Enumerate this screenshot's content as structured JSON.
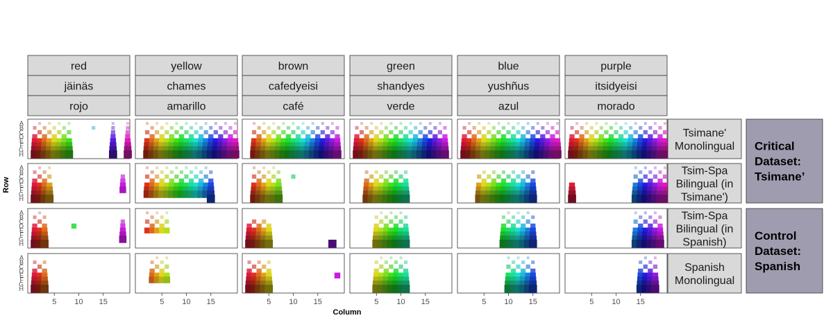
{
  "chart_data": {
    "type": "heatmap",
    "title": "",
    "xlabel": "Column",
    "ylabel": "Row",
    "x_ticks": [
      5,
      10,
      15
    ],
    "x_range": [
      0,
      20
    ],
    "y_ticks": [
      "A",
      "B",
      "C",
      "D",
      "E",
      "F",
      "G",
      "H"
    ],
    "colors": [
      {
        "english": "red",
        "tsimane": "jäinäs",
        "spanish": "rojo",
        "hex": "#c0392b"
      },
      {
        "english": "yellow",
        "tsimane": "chames",
        "spanish": "amarillo",
        "hex": "#d4b82a"
      },
      {
        "english": "brown",
        "tsimane": "cafedyeisi",
        "spanish": "café",
        "hex": "#7a4a1a"
      },
      {
        "english": "green",
        "tsimane": "shandyes",
        "spanish": "verde",
        "hex": "#2e8b3a"
      },
      {
        "english": "blue",
        "tsimane": "yushñus",
        "spanish": "azul",
        "hex": "#2a6fb0"
      },
      {
        "english": "purple",
        "tsimane": "itsidyeisi",
        "spanish": "morado",
        "hex": "#7a2a7a"
      }
    ],
    "conditions": [
      "Tsimane' Monolingual",
      "Tsim-Spa Bilingual (in Tsimane')",
      "Tsim-Spa Bilingual (in Spanish)",
      "Spanish Monolingual"
    ],
    "condition_lines": [
      [
        "Tsimane'",
        "Monolingual"
      ],
      [
        "Tsim-Spa",
        "Bilingual (in",
        "Tsimane')"
      ],
      [
        "Tsim-Spa",
        "Bilingual (in",
        "Spanish)"
      ],
      [
        "Spanish",
        "Monolingual"
      ]
    ],
    "groups": [
      {
        "lines": [
          "Critical",
          "Dataset:",
          "Tsimane’"
        ],
        "conditions": [
          0,
          1
        ]
      },
      {
        "lines": [
          "Control",
          "Dataset:",
          "Spanish"
        ],
        "conditions": [
          2,
          3
        ]
      }
    ],
    "panels": [
      [
        {
          "col": [
            1,
            8
          ],
          "row": [
            0,
            7
          ],
          "extra": [
            [
              17,
              0,
              7
            ],
            [
              20,
              0,
              7
            ],
            [
              13,
              1,
              1
            ]
          ]
        },
        {
          "col": [
            2,
            20
          ],
          "row": [
            0,
            7
          ]
        },
        {
          "col": [
            2,
            19
          ],
          "row": [
            0,
            7
          ]
        },
        {
          "col": [
            1,
            19
          ],
          "row": [
            0,
            7
          ]
        },
        {
          "col": [
            1,
            20
          ],
          "row": [
            0,
            7
          ]
        },
        {
          "col": [
            1,
            20
          ],
          "row": [
            0,
            7
          ]
        }
      ],
      [
        {
          "col": [
            1,
            4
          ],
          "row": [
            0,
            7
          ],
          "extra": [
            [
              19,
              2,
              5
            ]
          ]
        },
        {
          "col": [
            2,
            15
          ],
          "row": [
            0,
            6
          ],
          "extra": [
            [
              15,
              5,
              7
            ]
          ]
        },
        {
          "col": [
            2,
            7
          ],
          "row": [
            0,
            7
          ],
          "extra": [
            [
              10,
              2,
              2
            ]
          ]
        },
        {
          "col": [
            3,
            11
          ],
          "row": [
            1,
            7
          ]
        },
        {
          "col": [
            4,
            15
          ],
          "row": [
            1,
            7
          ]
        },
        {
          "col": [
            14,
            20
          ],
          "row": [
            0,
            7
          ],
          "extra": [
            [
              1,
              4,
              7
            ]
          ]
        }
      ],
      [
        {
          "col": [
            1,
            3
          ],
          "row": [
            0,
            7
          ],
          "extra": [
            [
              19,
              2,
              6
            ],
            [
              9,
              3,
              3
            ]
          ]
        },
        {
          "col": [
            2,
            6
          ],
          "row": [
            0,
            4
          ]
        },
        {
          "col": [
            1,
            5
          ],
          "row": [
            2,
            7
          ],
          "extra": [
            [
              18,
              7,
              7
            ]
          ]
        },
        {
          "col": [
            5,
            11
          ],
          "row": [
            0,
            7
          ]
        },
        {
          "col": [
            9,
            15
          ],
          "row": [
            0,
            7
          ]
        },
        {
          "col": [
            14,
            19
          ],
          "row": [
            0,
            7
          ]
        }
      ],
      [
        {
          "col": [
            1,
            3
          ],
          "row": [
            1,
            7
          ]
        },
        {
          "col": [
            3,
            6
          ],
          "row": [
            0,
            5
          ]
        },
        {
          "col": [
            1,
            5
          ],
          "row": [
            1,
            7
          ],
          "extra": [
            [
              19,
              4,
              4
            ]
          ]
        },
        {
          "col": [
            5,
            11
          ],
          "row": [
            0,
            7
          ]
        },
        {
          "col": [
            10,
            15
          ],
          "row": [
            0,
            7
          ]
        },
        {
          "col": [
            15,
            18
          ],
          "row": [
            0,
            7
          ]
        }
      ]
    ]
  }
}
